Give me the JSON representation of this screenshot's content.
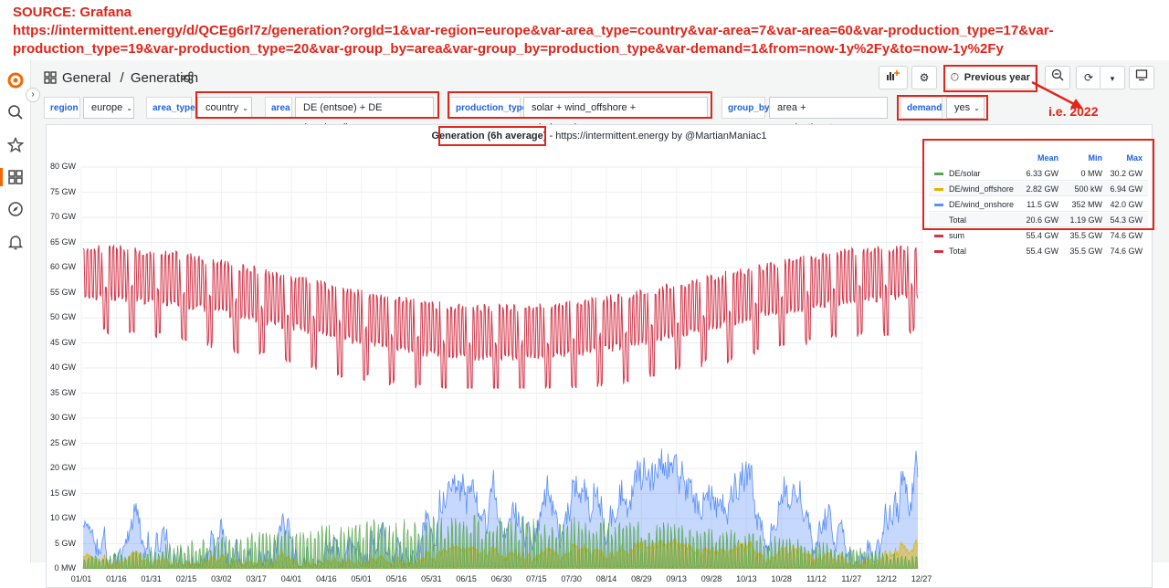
{
  "annotation": {
    "source_line": "SOURCE: Grafana",
    "url_line1": "https://intermittent.energy/d/QCEg6rl7z/generation?orgId=1&var-region=europe&var-area_type=country&var-area=7&var-area=60&var-production_type=17&var-",
    "url_line2": "production_type=19&var-production_type=20&var-group_by=area&var-group_by=production_type&var-demand=1&from=now-1y%2Fy&to=now-1y%2Fy",
    "ie_note": "i.e. 2022"
  },
  "breadcrumb": {
    "folder": "General",
    "separator": "/",
    "dashboard": "Generation"
  },
  "toolbar": {
    "time_range": "Previous year"
  },
  "variables": [
    {
      "label": "region",
      "value": "europe"
    },
    {
      "label": "area_type",
      "value": "country"
    },
    {
      "label": "area",
      "value": "DE (entsoe) + DE (nordpool)"
    },
    {
      "label": "production_type",
      "value": "solar + wind_offshore + wind_onshore"
    },
    {
      "label": "group_by",
      "value": "area + production_type"
    },
    {
      "label": "demand",
      "value": "yes"
    }
  ],
  "panel": {
    "title_bold": "Generation (6h average)",
    "title_rest": " - https://intermittent.energy by @MartianManiac1"
  },
  "legend": {
    "headers": [
      "Mean",
      "Min",
      "Max"
    ],
    "rows": [
      {
        "name": "DE/solar",
        "color": "#56a64b",
        "mean": "6.33 GW",
        "min": "0 MW",
        "max": "30.2 GW"
      },
      {
        "name": "DE/wind_offshore",
        "color": "#e0b400",
        "mean": "2.82 GW",
        "min": "500 kW",
        "max": "6.94 GW"
      },
      {
        "name": "DE/wind_onshore",
        "color": "#5b8ff9",
        "mean": "11.5 GW",
        "min": "352 MW",
        "max": "42.0 GW"
      },
      {
        "name": "Total",
        "color": "",
        "mean": "20.6 GW",
        "min": "1.19 GW",
        "max": "54.3 GW"
      },
      {
        "name": "sum",
        "color": "#d63347",
        "mean": "55.4 GW",
        "min": "35.5 GW",
        "max": "74.6 GW"
      },
      {
        "name": "Total",
        "color": "#d63347",
        "mean": "55.4 GW",
        "min": "35.5 GW",
        "max": "74.6 GW"
      }
    ]
  },
  "chart_data": {
    "type": "area",
    "title": "Generation (6h average) - https://intermittent.energy by @MartianManiac1",
    "y_ticks": [
      "0 MW",
      "5 GW",
      "10 GW",
      "15 GW",
      "20 GW",
      "25 GW",
      "30 GW",
      "35 GW",
      "40 GW",
      "45 GW",
      "50 GW",
      "55 GW",
      "60 GW",
      "65 GW",
      "70 GW",
      "75 GW",
      "80 GW"
    ],
    "ylim": [
      0,
      80
    ],
    "x_ticks": [
      "01/01",
      "01/16",
      "01/31",
      "02/15",
      "03/02",
      "03/17",
      "04/01",
      "04/16",
      "05/01",
      "05/16",
      "05/31",
      "06/15",
      "06/30",
      "07/15",
      "07/30",
      "08/14",
      "08/29",
      "09/13",
      "09/28",
      "10/13",
      "10/28",
      "11/12",
      "11/27",
      "12/12",
      "12/27"
    ],
    "series": [
      {
        "name": "DE/wind_onshore",
        "color": "#5b8ff9",
        "mean": 11.5,
        "min": 0.352,
        "max": 42.0
      },
      {
        "name": "DE/wind_offshore",
        "color": "#e0b400",
        "mean": 2.82,
        "min": 0.0005,
        "max": 6.94
      },
      {
        "name": "DE/solar",
        "color": "#56a64b",
        "mean": 6.33,
        "min": 0,
        "max": 30.2
      },
      {
        "name": "sum",
        "color": "#d63347",
        "mean": 55.4,
        "min": 35.5,
        "max": 74.6
      }
    ]
  }
}
